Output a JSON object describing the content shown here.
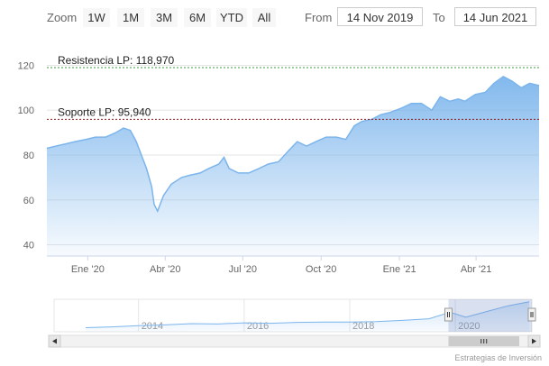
{
  "toolbar": {
    "zoom_label": "Zoom",
    "buttons": [
      "1W",
      "1M",
      "3M",
      "6M",
      "YTD",
      "All"
    ],
    "from_label": "From",
    "from_value": "14 Nov 2019",
    "to_label": "To",
    "to_value": "14 Jun 2021"
  },
  "colors": {
    "line": "#7cb5ec",
    "area_top": "#7cb5ec",
    "resistance": "#3c9a3c",
    "support": "#8b1a1a"
  },
  "chart_data": {
    "type": "area",
    "x_range": [
      "2019-11-14",
      "2021-06-14"
    ],
    "ylim": [
      35,
      125
    ],
    "yticks": [
      40,
      60,
      80,
      100,
      120
    ],
    "xtick_labels": [
      "Ene '20",
      "Abr '20",
      "Jul '20",
      "Oct '20",
      "Ene '21",
      "Abr '21"
    ],
    "xtick_dates": [
      "2020-01-01",
      "2020-04-01",
      "2020-07-01",
      "2020-10-01",
      "2021-01-01",
      "2021-04-01"
    ],
    "grid": true,
    "series": [
      {
        "x": [
          "2019-11-14",
          "2019-11-25",
          "2019-12-06",
          "2019-12-17",
          "2019-12-30",
          "2020-01-10",
          "2020-01-22",
          "2020-02-03",
          "2020-02-12",
          "2020-02-20",
          "2020-02-27",
          "2020-03-05",
          "2020-03-10",
          "2020-03-16",
          "2020-03-19",
          "2020-03-23",
          "2020-03-30",
          "2020-04-08",
          "2020-04-20",
          "2020-04-30",
          "2020-05-12",
          "2020-05-22",
          "2020-06-03",
          "2020-06-09",
          "2020-06-15",
          "2020-06-26",
          "2020-07-08",
          "2020-07-20",
          "2020-07-31",
          "2020-08-12",
          "2020-08-24",
          "2020-09-03",
          "2020-09-14",
          "2020-09-25",
          "2020-10-07",
          "2020-10-19",
          "2020-10-30",
          "2020-11-09",
          "2020-11-18",
          "2020-11-30",
          "2020-12-10",
          "2020-12-21",
          "2021-01-04",
          "2021-01-15",
          "2021-01-27",
          "2021-02-08",
          "2021-02-18",
          "2021-03-01",
          "2021-03-11",
          "2021-03-19",
          "2021-03-31",
          "2021-04-12",
          "2021-04-22",
          "2021-05-03",
          "2021-05-13",
          "2021-05-24",
          "2021-06-03",
          "2021-06-14"
        ],
        "y": [
          83,
          84,
          85,
          86,
          87,
          88,
          88,
          90,
          92,
          91,
          86,
          79,
          74,
          66,
          58,
          55,
          62,
          67,
          70,
          71,
          72,
          74,
          76,
          79,
          74,
          72,
          72,
          74,
          76,
          77,
          82,
          86,
          84,
          86,
          88,
          88,
          87,
          93,
          95,
          96,
          98,
          99,
          101,
          103,
          103,
          100,
          106,
          104,
          105,
          104,
          107,
          108,
          112,
          115,
          113,
          110,
          112,
          111
        ]
      }
    ],
    "annotations": [
      {
        "label": "Resistencia LP: 118,970",
        "value": 118.97
      },
      {
        "label": "Soporte LP: 95,940",
        "value": 95.94
      }
    ],
    "navigator": {
      "year_labels": [
        "2014",
        "2016",
        "2018",
        "2020"
      ],
      "x": [
        2013.0,
        2013.5,
        2014.0,
        2014.5,
        2015.0,
        2015.5,
        2016.0,
        2016.5,
        2017.0,
        2017.5,
        2018.0,
        2018.5,
        2019.0,
        2019.5,
        2019.9,
        2020.2,
        2020.6,
        2021.0,
        2021.4
      ],
      "y": [
        40,
        42,
        45,
        47,
        50,
        49,
        52,
        51,
        53,
        54,
        54,
        55,
        58,
        62,
        78,
        66,
        80,
        94,
        104
      ]
    }
  },
  "credits": "Estrategias de Inversión"
}
